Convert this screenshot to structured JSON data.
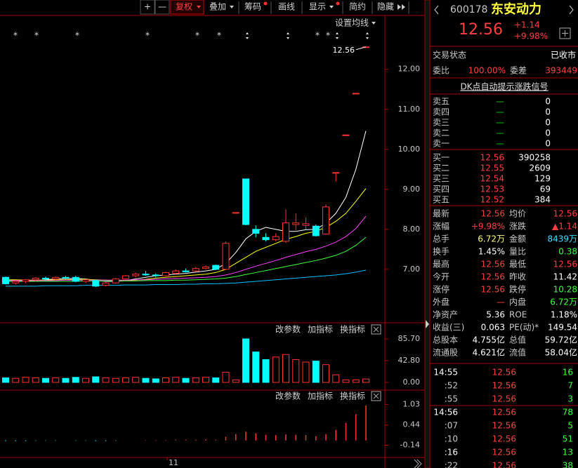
{
  "toolbar": {
    "plus": "+",
    "minus": "—",
    "fuquan": "复权",
    "diejia": "叠加",
    "chouma": "筹码",
    "huaxian": "画线",
    "xianshi": "显示",
    "jianyue": "简约",
    "yincang": "隐藏"
  },
  "chart_data": {
    "type": "candlestick",
    "ma_setting": "设置均线",
    "last_price_label": "12.56",
    "x_label": "11",
    "open": [
      6.8,
      6.66,
      6.7,
      6.74,
      6.78,
      6.76,
      6.8,
      6.8,
      6.7,
      6.72,
      6.6,
      6.66,
      6.76,
      6.84,
      6.88,
      6.86,
      6.84,
      6.9,
      6.96,
      6.96,
      7.02,
      7.1,
      7.0,
      8.42,
      9.26,
      8.0,
      7.8,
      7.74,
      7.7,
      8.12,
      8.1,
      8.08,
      7.88,
      9.42,
      10.36,
      11.4,
      12.56
    ],
    "high": [
      6.82,
      6.72,
      6.76,
      6.8,
      6.82,
      6.82,
      6.84,
      6.84,
      6.76,
      6.74,
      6.68,
      6.78,
      6.86,
      6.92,
      6.96,
      6.9,
      6.94,
      7.0,
      7.02,
      7.06,
      7.1,
      7.12,
      7.7,
      8.42,
      9.26,
      8.1,
      7.9,
      7.9,
      8.5,
      8.4,
      8.3,
      8.12,
      8.62,
      9.42,
      10.36,
      11.4,
      12.56
    ],
    "low": [
      6.62,
      6.62,
      6.66,
      6.7,
      6.72,
      6.72,
      6.74,
      6.68,
      6.66,
      6.56,
      6.58,
      6.64,
      6.74,
      6.8,
      6.84,
      6.8,
      6.82,
      6.88,
      6.92,
      6.94,
      7.0,
      6.98,
      6.98,
      8.42,
      8.1,
      7.8,
      7.7,
      7.7,
      7.66,
      7.98,
      8.0,
      7.82,
      7.86,
      9.2,
      10.36,
      11.4,
      12.56
    ],
    "close": [
      6.64,
      6.7,
      6.74,
      6.78,
      6.76,
      6.8,
      6.78,
      6.7,
      6.74,
      6.58,
      6.66,
      6.76,
      6.84,
      6.88,
      6.86,
      6.84,
      6.92,
      6.96,
      6.94,
      7.02,
      7.06,
      7.0,
      7.65,
      8.42,
      8.12,
      7.9,
      7.74,
      7.82,
      8.16,
      8.16,
      8.14,
      7.84,
      8.56,
      9.42,
      10.36,
      11.4,
      12.56
    ],
    "ma": [
      {
        "color": "#ffffff",
        "values": [
          6.74,
          6.72,
          6.71,
          6.72,
          6.74,
          6.76,
          6.77,
          6.77,
          6.76,
          6.72,
          6.7,
          6.7,
          6.72,
          6.76,
          6.8,
          6.84,
          6.86,
          6.88,
          6.9,
          6.93,
          6.96,
          7.0,
          7.15,
          7.42,
          7.76,
          7.95,
          8.05,
          8.0,
          7.95,
          7.95,
          7.99,
          8.0,
          8.15,
          8.4,
          8.8,
          9.5,
          10.46
        ]
      },
      {
        "color": "#ffff00",
        "values": [
          6.74,
          6.74,
          6.73,
          6.73,
          6.73,
          6.74,
          6.74,
          6.75,
          6.75,
          6.74,
          6.73,
          6.72,
          6.72,
          6.73,
          6.75,
          6.78,
          6.8,
          6.82,
          6.84,
          6.86,
          6.88,
          6.92,
          7.0,
          7.15,
          7.3,
          7.45,
          7.55,
          7.65,
          7.75,
          7.82,
          7.9,
          7.95,
          8.05,
          8.2,
          8.4,
          8.7,
          9.02
        ]
      },
      {
        "color": "#ff40ff",
        "values": [
          6.72,
          6.72,
          6.72,
          6.72,
          6.72,
          6.72,
          6.73,
          6.73,
          6.73,
          6.73,
          6.73,
          6.73,
          6.73,
          6.74,
          6.74,
          6.75,
          6.76,
          6.77,
          6.78,
          6.79,
          6.8,
          6.82,
          6.86,
          6.92,
          7.0,
          7.08,
          7.15,
          7.22,
          7.3,
          7.37,
          7.44,
          7.5,
          7.58,
          7.68,
          7.82,
          8.02,
          8.33
        ]
      },
      {
        "color": "#40ff40",
        "values": [
          6.7,
          6.7,
          6.7,
          6.7,
          6.7,
          6.7,
          6.7,
          6.7,
          6.71,
          6.71,
          6.71,
          6.71,
          6.71,
          6.71,
          6.72,
          6.72,
          6.72,
          6.73,
          6.73,
          6.74,
          6.75,
          6.76,
          6.78,
          6.82,
          6.87,
          6.92,
          6.97,
          7.02,
          7.07,
          7.12,
          7.17,
          7.22,
          7.28,
          7.35,
          7.45,
          7.6,
          7.8
        ]
      },
      {
        "color": "#00c0ff",
        "values": [
          6.58,
          6.58,
          6.58,
          6.58,
          6.59,
          6.59,
          6.59,
          6.59,
          6.6,
          6.6,
          6.6,
          6.6,
          6.61,
          6.61,
          6.61,
          6.62,
          6.62,
          6.62,
          6.63,
          6.63,
          6.64,
          6.64,
          6.65,
          6.66,
          6.68,
          6.7,
          6.72,
          6.74,
          6.76,
          6.78,
          6.8,
          6.82,
          6.84,
          6.86,
          6.89,
          6.93,
          6.98
        ]
      }
    ],
    "ylim": [
      5.7,
      12.96
    ],
    "yticks": [
      {
        "value": 12,
        "label": "12.00"
      },
      {
        "value": 11,
        "label": "11.00"
      },
      {
        "value": 10,
        "label": "10.00"
      },
      {
        "value": 9,
        "label": "9.00"
      },
      {
        "value": 8,
        "label": "8.00"
      },
      {
        "value": 7,
        "label": "7.00"
      }
    ],
    "volume": {
      "edit": "改参数",
      "add": "加指标",
      "swap": "换指标",
      "values": [
        9,
        8,
        10,
        9,
        8,
        9,
        8,
        10,
        8,
        11,
        9,
        8,
        9,
        10,
        8,
        7,
        9,
        10,
        8,
        9,
        10,
        9,
        20,
        5,
        85.7,
        60,
        45,
        50,
        55,
        45,
        40,
        42,
        35,
        15,
        5,
        5,
        6.72
      ],
      "ylim": [
        -13.8,
        114.7
      ],
      "yticks": [
        {
          "value": 85.7,
          "label": "85.70"
        },
        {
          "value": 42.8,
          "label": "42.80"
        },
        {
          "value": 0,
          "label": "0.00"
        }
      ]
    },
    "indicator": {
      "edit": "改参数",
      "add": "加指标",
      "swap": "换指标",
      "values": [
        -0.02,
        -0.02,
        -0.02,
        -0.01,
        -0.01,
        -0.01,
        0,
        -0.01,
        -0.01,
        -0.02,
        -0.02,
        -0.01,
        0,
        0,
        0.01,
        0.01,
        0.01,
        0.02,
        0.02,
        0.02,
        0.03,
        0.02,
        0.1,
        0.18,
        0.25,
        0.2,
        0.16,
        0.15,
        0.17,
        0.16,
        0.15,
        0.12,
        0.18,
        0.3,
        0.5,
        0.75,
        1.0
      ],
      "ylim": [
        -0.49,
        1.4
      ],
      "yticks": [
        {
          "value": 1.03,
          "label": "1.03"
        },
        {
          "value": 0.44,
          "label": "0.44"
        },
        {
          "value": -0.14,
          "label": "-0.14"
        }
      ]
    }
  },
  "quote": {
    "code": "600178",
    "name": "东安动力",
    "price": "12.56",
    "change": "+1.14",
    "change_pct": "+9.98%",
    "status": [
      "交易状态",
      "已收市"
    ],
    "commission": [
      "委比",
      "100.00%",
      "委差",
      "393449"
    ],
    "signal": "DK点自动提示涨跌信号",
    "sell": [
      [
        "卖五",
        "—",
        "0"
      ],
      [
        "卖四",
        "—",
        "0"
      ],
      [
        "卖三",
        "—",
        "0"
      ],
      [
        "卖二",
        "—",
        "0"
      ],
      [
        "卖一",
        "—",
        "0"
      ]
    ],
    "buy": [
      [
        "买一",
        "12.56",
        "390258"
      ],
      [
        "买二",
        "12.55",
        "2609"
      ],
      [
        "买三",
        "12.54",
        "129"
      ],
      [
        "买四",
        "12.53",
        "69"
      ],
      [
        "买五",
        "12.52",
        "384"
      ]
    ],
    "stats": [
      [
        "最新",
        "12.56",
        "均价",
        "12.56"
      ],
      [
        "涨幅",
        "+9.98%",
        "涨跌",
        "▲1.14"
      ],
      [
        "总手",
        "6.72万",
        "金额",
        "8439万"
      ],
      [
        "换手",
        "1.45%",
        "量比",
        "0.38"
      ],
      [
        "最高",
        "12.56",
        "最低",
        "12.56"
      ],
      [
        "今开",
        "12.56",
        "昨收",
        "11.42"
      ],
      [
        "涨停",
        "12.56",
        "跌停",
        "10.28"
      ],
      [
        "外盘",
        "—",
        "内盘",
        "6.72万"
      ],
      [
        "净资产",
        "5.36",
        "ROE",
        "1.18%"
      ],
      [
        "收益(三)",
        "0.063",
        "PE(动)*",
        "149.54"
      ],
      [
        "总股本",
        "4.755亿",
        "总值",
        "59.72亿"
      ],
      [
        "流通股",
        "4.621亿",
        "流值",
        "58.04亿"
      ]
    ],
    "ticks": [
      [
        "14:55",
        "12.56",
        "16"
      ],
      [
        ":52",
        "12.56",
        "7"
      ],
      [
        ":55",
        "12.56",
        "3"
      ],
      [
        "14:56",
        "12.56",
        "78"
      ],
      [
        ":07",
        "12.56",
        "5"
      ],
      [
        ":10",
        "12.56",
        "51"
      ],
      [
        ":16",
        "12.56",
        "13"
      ],
      [
        ":22",
        "12.56",
        "38"
      ]
    ]
  }
}
